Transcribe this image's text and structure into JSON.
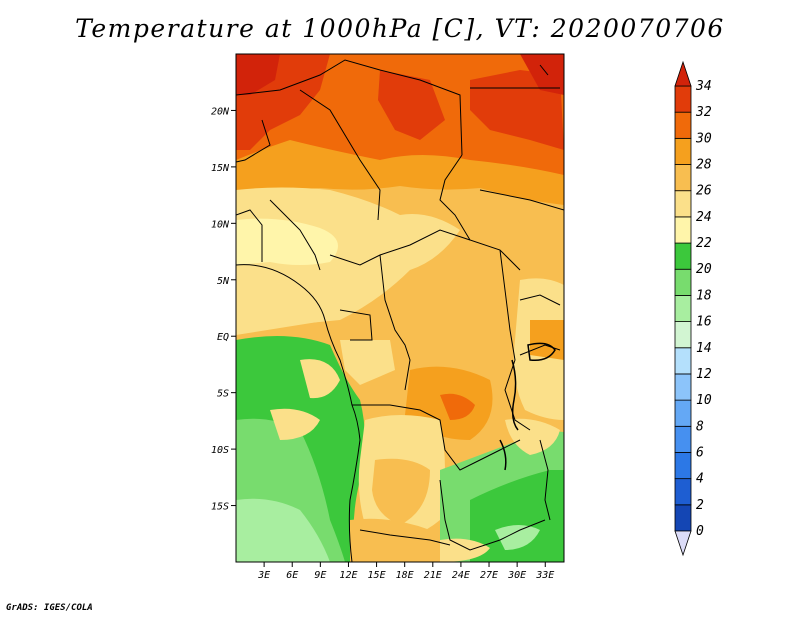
{
  "title": "Temperature at 1000hPa [C], VT: 2020070706",
  "credit": "GrADS: IGES/COLA",
  "map": {
    "lon_range": [
      0,
      35
    ],
    "lat_range": [
      -20,
      25
    ],
    "x_ticks": [
      {
        "lon": 3,
        "label": "3E"
      },
      {
        "lon": 6,
        "label": "6E"
      },
      {
        "lon": 9,
        "label": "9E"
      },
      {
        "lon": 12,
        "label": "12E"
      },
      {
        "lon": 15,
        "label": "15E"
      },
      {
        "lon": 18,
        "label": "18E"
      },
      {
        "lon": 21,
        "label": "21E"
      },
      {
        "lon": 24,
        "label": "24E"
      },
      {
        "lon": 27,
        "label": "27E"
      },
      {
        "lon": 30,
        "label": "30E"
      },
      {
        "lon": 33,
        "label": "33E"
      }
    ],
    "y_ticks": [
      {
        "lat": 20,
        "label": "20N"
      },
      {
        "lat": 15,
        "label": "15N"
      },
      {
        "lat": 10,
        "label": "10N"
      },
      {
        "lat": 5,
        "label": "5N"
      },
      {
        "lat": 0,
        "label": "EQ"
      },
      {
        "lat": -5,
        "label": "5S"
      },
      {
        "lat": -10,
        "label": "10S"
      },
      {
        "lat": -15,
        "label": "15S"
      }
    ]
  },
  "colorbar": {
    "levels": [
      "0",
      "2",
      "4",
      "6",
      "8",
      "10",
      "12",
      "14",
      "16",
      "18",
      "20",
      "22",
      "24",
      "26",
      "28",
      "30",
      "32",
      "34"
    ],
    "colors": [
      "#0a2a8c",
      "#1446b4",
      "#1e5ed2",
      "#2c78e6",
      "#4690f0",
      "#64a8f5",
      "#8cc4fa",
      "#b4e0fc",
      "#d2f5d2",
      "#a8eea0",
      "#78dc6e",
      "#3cc83c",
      "#fff5aa",
      "#fbe08a",
      "#f8be50",
      "#f5a01e",
      "#f06a0a",
      "#e13c0a"
    ],
    "under_color": "#dcdcf8",
    "over_color": "#d2230a"
  }
}
